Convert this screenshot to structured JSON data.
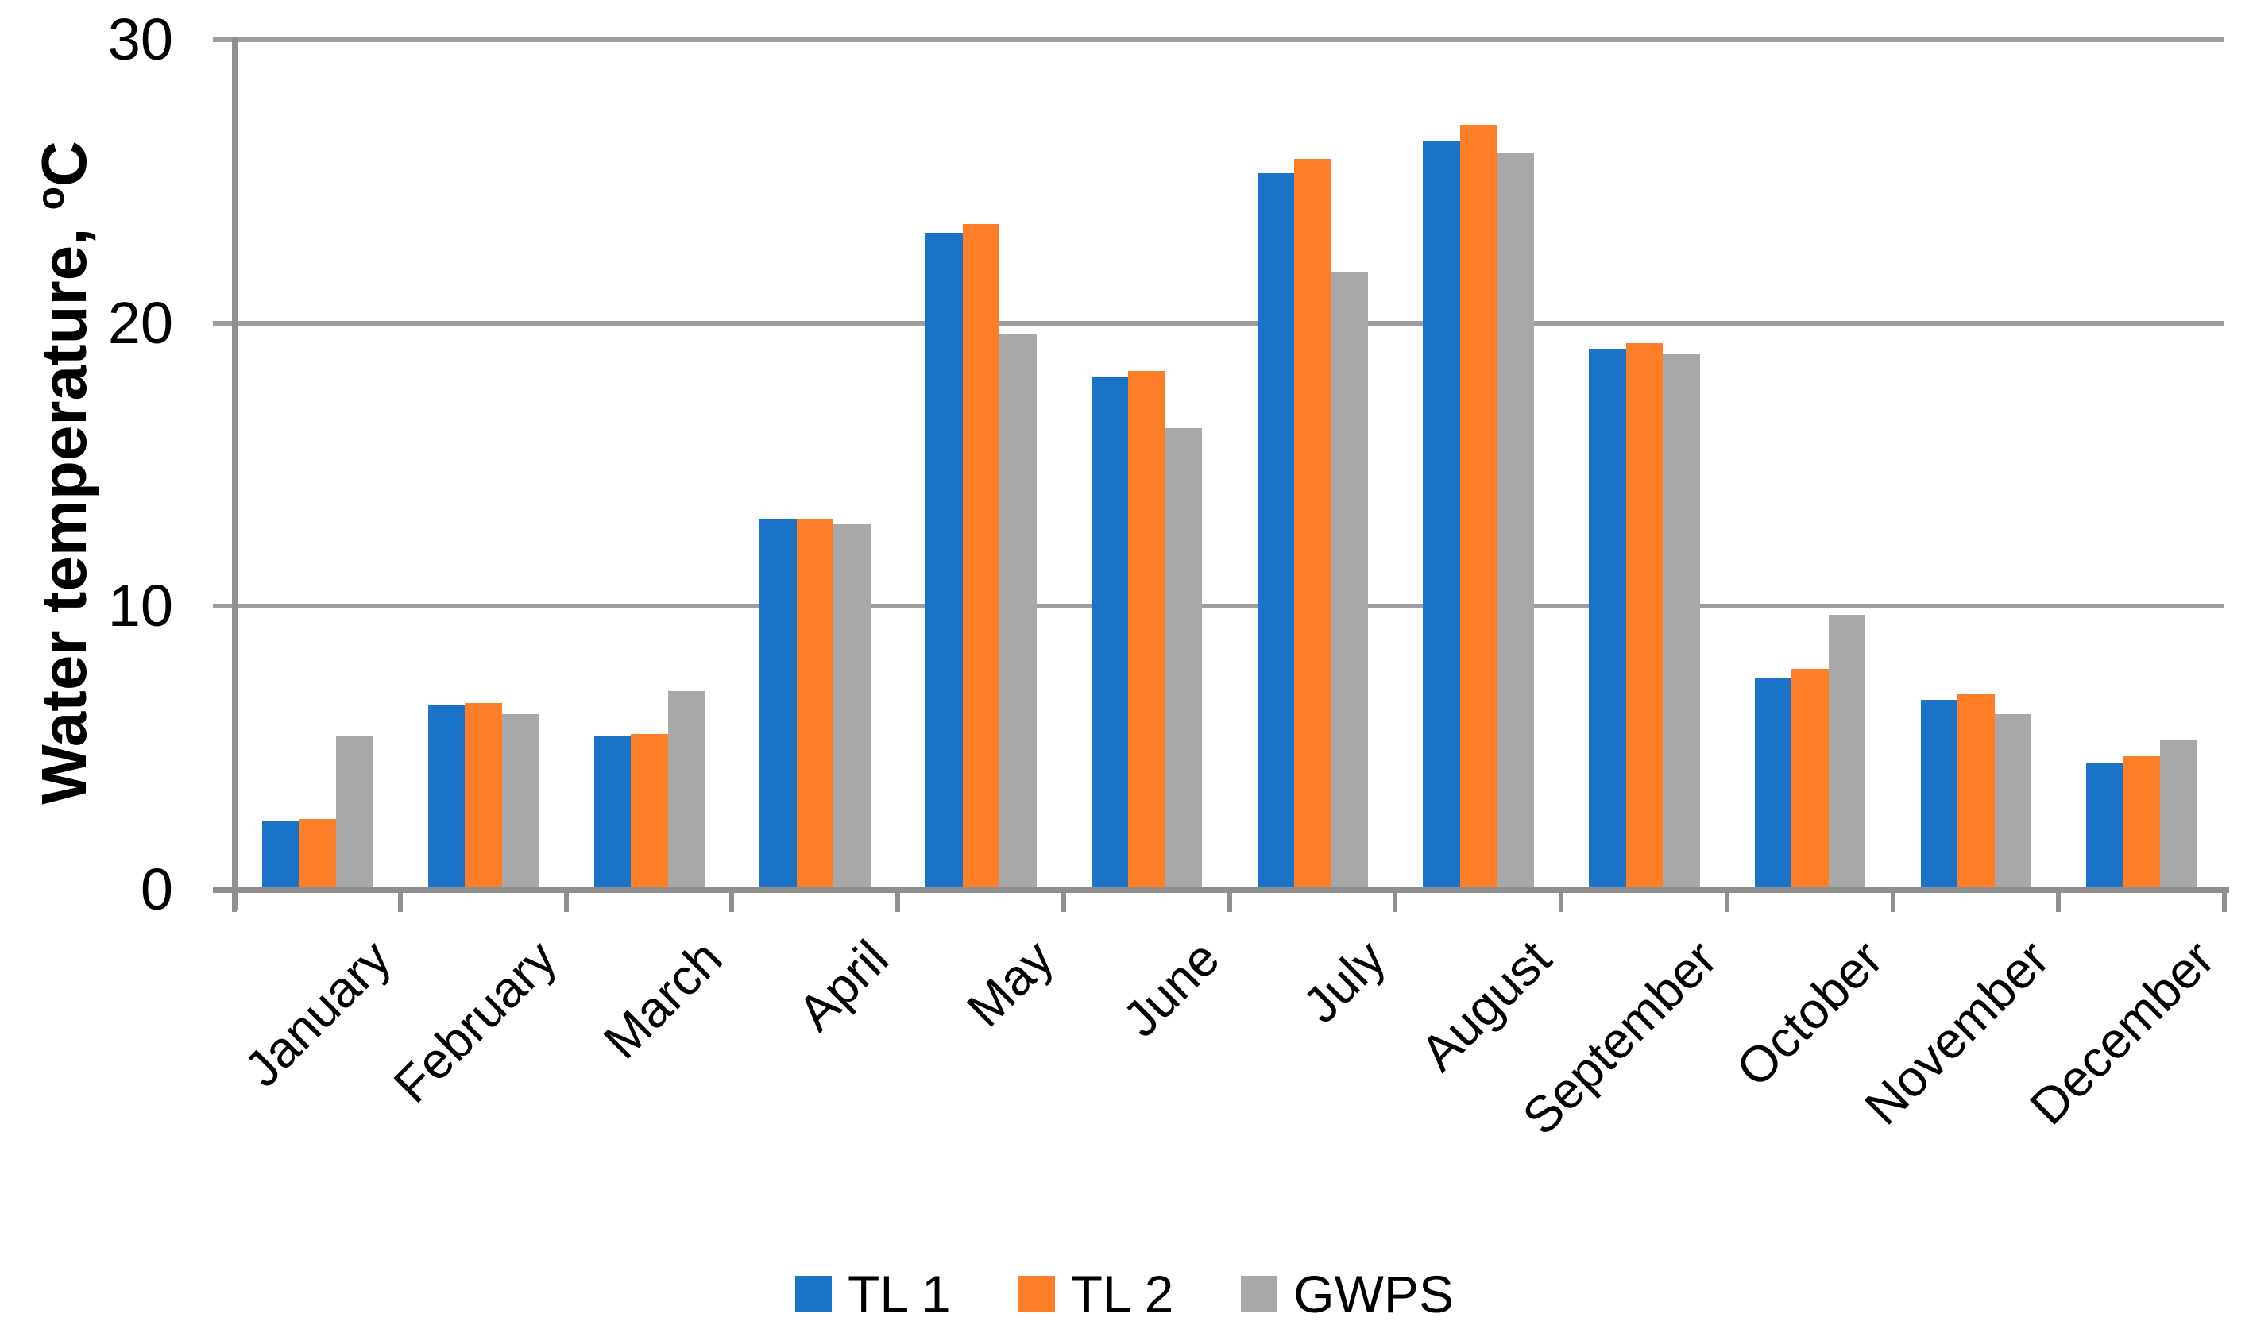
{
  "chart_data": {
    "type": "bar",
    "title": "",
    "categories": [
      "January",
      "February",
      "March",
      "April",
      "May",
      "June",
      "July",
      "August",
      "September",
      "October",
      "November",
      "December"
    ],
    "series": [
      {
        "name": "TL 1",
        "color": "#1B73C8",
        "values": [
          2.4,
          6.5,
          5.4,
          13.1,
          23.2,
          18.1,
          25.3,
          26.4,
          19.1,
          7.5,
          6.7,
          4.5
        ]
      },
      {
        "name": "TL 2",
        "color": "#FD7E27",
        "values": [
          2.5,
          6.6,
          5.5,
          13.1,
          23.5,
          18.3,
          25.8,
          27.0,
          19.3,
          7.8,
          6.9,
          4.7
        ]
      },
      {
        "name": "GWPS",
        "color": "#A8A8A8",
        "values": [
          5.4,
          6.2,
          7.0,
          12.9,
          19.6,
          16.3,
          21.8,
          26.0,
          18.9,
          9.7,
          6.2,
          5.3
        ]
      }
    ],
    "ylabel_prefix": "Water temperature, ",
    "ylabel_sup": "o",
    "ylabel_suffix": "C",
    "xlabel": "",
    "yticks": [
      0,
      10,
      20,
      30
    ],
    "ylim": [
      0,
      30
    ],
    "grid": "horizontal",
    "legend_position": "bottom-center",
    "grid_color": "#9D9D9D",
    "axis_color": "#8F8F8F",
    "text_color": "#000000"
  }
}
